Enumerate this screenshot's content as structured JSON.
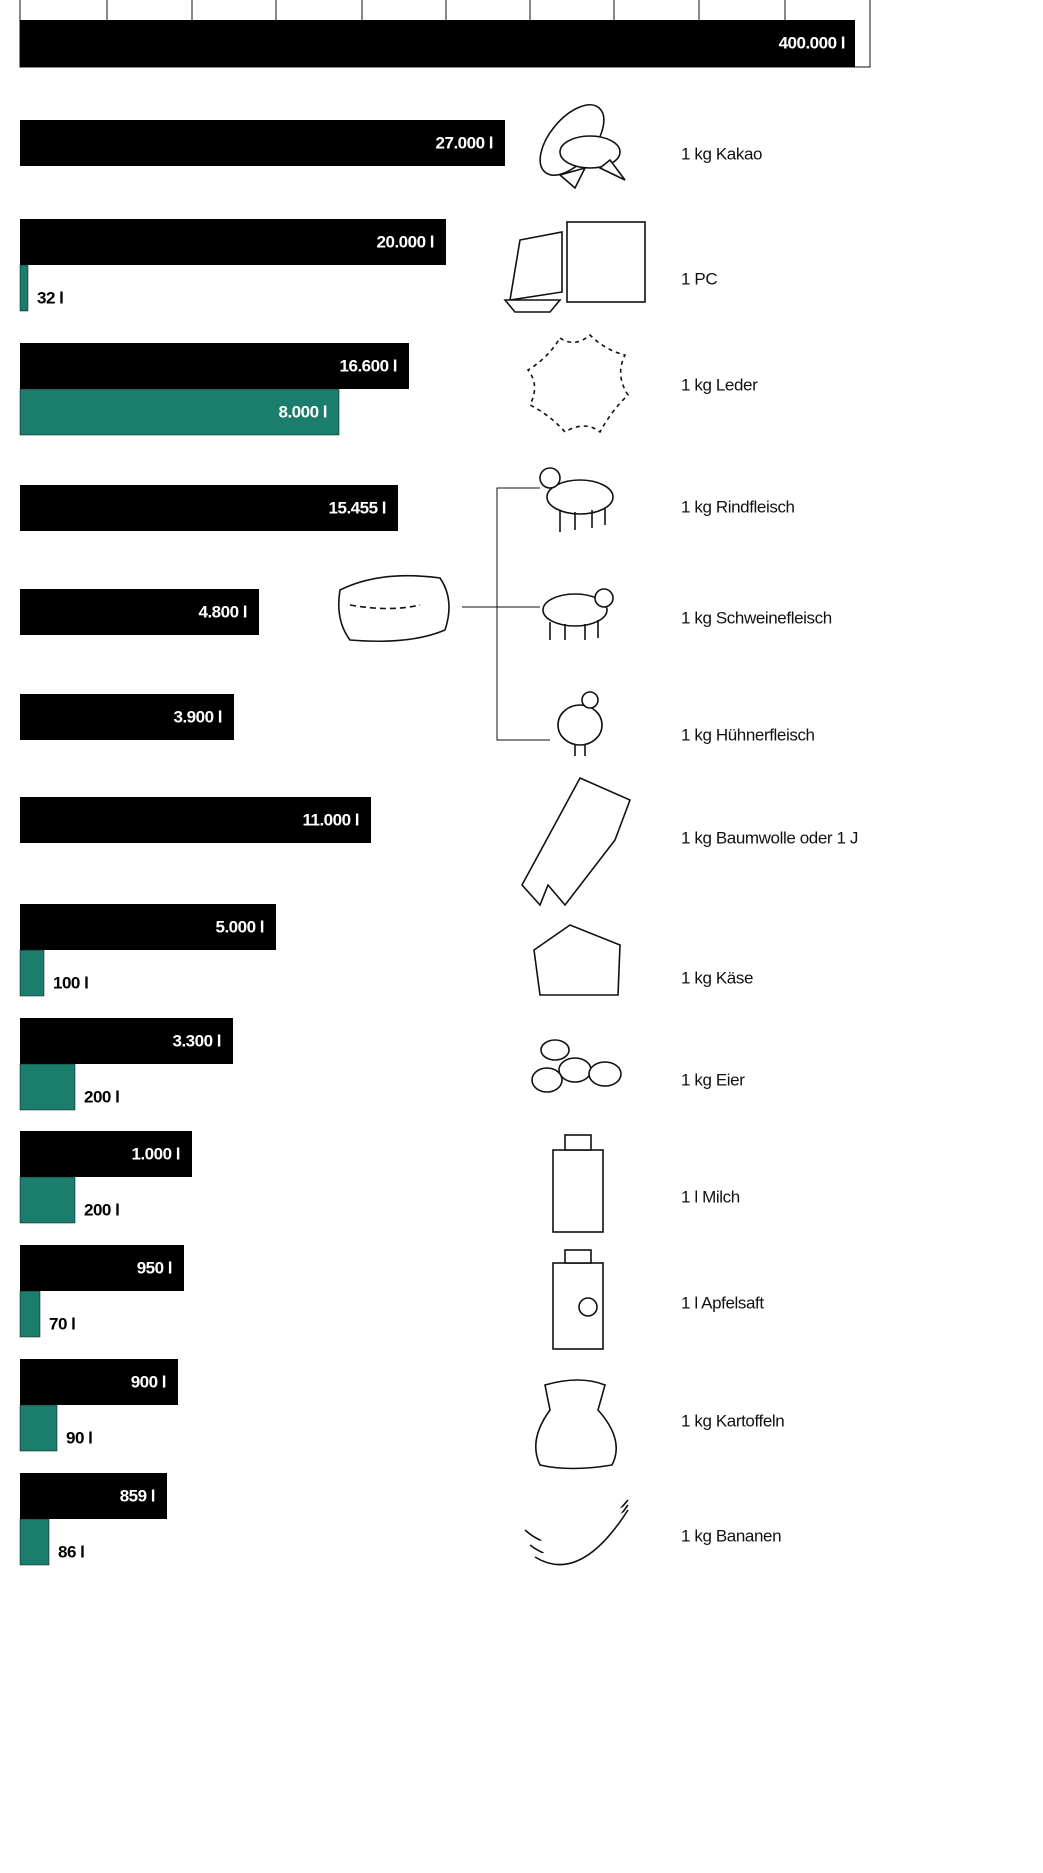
{
  "top": {
    "label": "400.000 l"
  },
  "rows": [
    {
      "item": "1 kg Kakao",
      "primary": "27.000 l"
    },
    {
      "item": "1 PC",
      "primary": "20.000 l",
      "secondary": "32 l"
    },
    {
      "item": "1 kg Leder",
      "primary": "16.600 l",
      "secondary": "8.000 l"
    },
    {
      "item": "1 kg Rindfleisch",
      "primary": "15.455 l"
    },
    {
      "item": "1 kg Schweinefleisch",
      "primary": "4.800 l"
    },
    {
      "item": "1 kg Hühnerfleisch",
      "primary": "3.900 l"
    },
    {
      "item": "1 kg Baumwolle oder 1 J",
      "primary": "11.000 l"
    },
    {
      "item": "1 kg Käse",
      "primary": "5.000 l",
      "secondary": "100 l"
    },
    {
      "item": "1 kg Eier",
      "primary": "3.300 l",
      "secondary": "200 l"
    },
    {
      "item": "1 l Milch",
      "primary": "1.000 l",
      "secondary": "200 l"
    },
    {
      "item": "1 l Apfelsaft",
      "primary": "950 l",
      "secondary": "70 l"
    },
    {
      "item": "1 kg Kartoffeln",
      "primary": "900 l",
      "secondary": "90 l"
    },
    {
      "item": "1 kg Bananen",
      "primary": "859 l",
      "secondary": "86 l"
    }
  ]
}
